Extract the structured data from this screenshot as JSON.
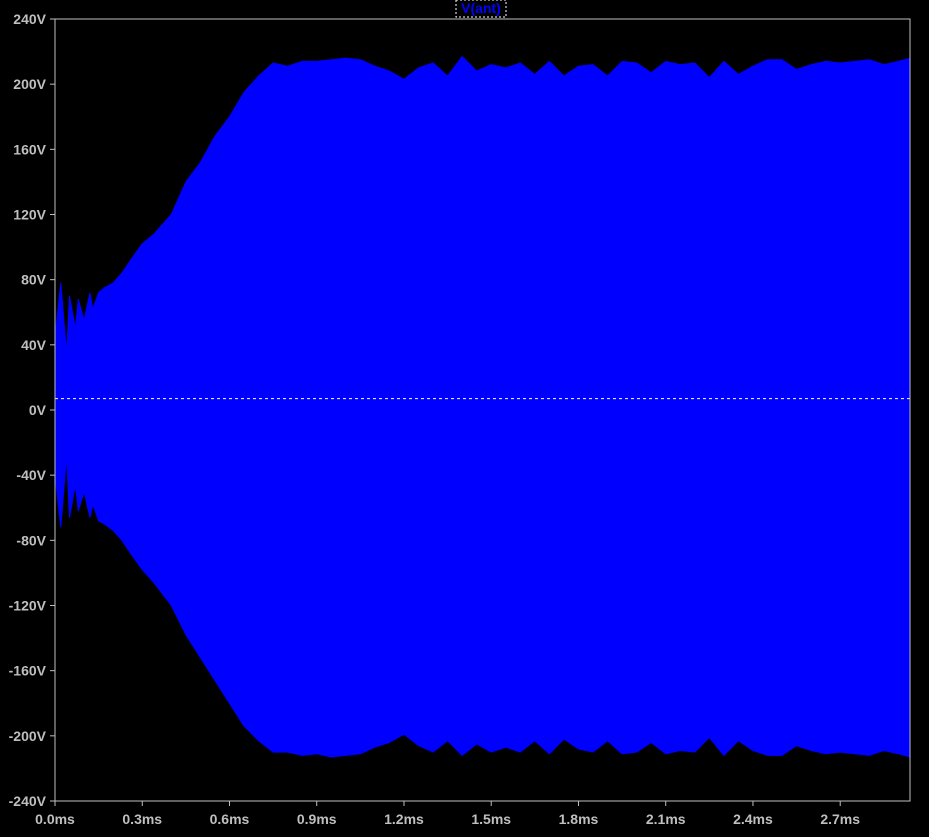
{
  "chart_data": {
    "type": "area",
    "title": "",
    "xlabel": "",
    "ylabel": "",
    "legend": {
      "label": "V(ant)",
      "placement": "top-center"
    },
    "xlim": [
      0.0,
      2.94
    ],
    "ylim": [
      -240,
      240
    ],
    "x_unit": "ms",
    "y_unit": "V",
    "x_ticks": [
      {
        "value": 0.0,
        "label": "0.0ms"
      },
      {
        "value": 0.3,
        "label": "0.3ms"
      },
      {
        "value": 0.6,
        "label": "0.6ms"
      },
      {
        "value": 0.9,
        "label": "0.9ms"
      },
      {
        "value": 1.2,
        "label": "1.2ms"
      },
      {
        "value": 1.5,
        "label": "1.5ms"
      },
      {
        "value": 1.8,
        "label": "1.8ms"
      },
      {
        "value": 2.1,
        "label": "2.1ms"
      },
      {
        "value": 2.4,
        "label": "2.4ms"
      },
      {
        "value": 2.7,
        "label": "2.7ms"
      }
    ],
    "y_ticks": [
      {
        "value": 240,
        "label": "240V"
      },
      {
        "value": 200,
        "label": "200V"
      },
      {
        "value": 160,
        "label": "160V"
      },
      {
        "value": 120,
        "label": "120V"
      },
      {
        "value": 80,
        "label": "80V"
      },
      {
        "value": 40,
        "label": "40V"
      },
      {
        "value": 0,
        "label": "0V"
      },
      {
        "value": -40,
        "label": "-40V"
      },
      {
        "value": -80,
        "label": "-80V"
      },
      {
        "value": -120,
        "label": "-120V"
      },
      {
        "value": -160,
        "label": "-160V"
      },
      {
        "value": -200,
        "label": "-200V"
      },
      {
        "value": -240,
        "label": "-240V"
      }
    ],
    "zero_line_value": 7,
    "series": [
      {
        "name": "V(ant)",
        "color": "#0000ff",
        "upper_envelope": {
          "x": [
            0.0,
            0.02,
            0.04,
            0.05,
            0.07,
            0.08,
            0.1,
            0.12,
            0.13,
            0.15,
            0.17,
            0.2,
            0.23,
            0.26,
            0.3,
            0.34,
            0.4,
            0.45,
            0.5,
            0.55,
            0.6,
            0.65,
            0.7,
            0.75,
            0.8,
            0.85,
            0.9,
            0.95,
            1.0,
            1.05,
            1.1,
            1.15,
            1.2,
            1.25,
            1.3,
            1.35,
            1.4,
            1.45,
            1.5,
            1.55,
            1.6,
            1.65,
            1.7,
            1.75,
            1.8,
            1.85,
            1.9,
            1.95,
            2.0,
            2.05,
            2.1,
            2.15,
            2.2,
            2.25,
            2.3,
            2.35,
            2.4,
            2.45,
            2.5,
            2.55,
            2.6,
            2.65,
            2.7,
            2.75,
            2.8,
            2.85,
            2.9,
            2.94
          ],
          "y": [
            45,
            78,
            35,
            70,
            50,
            68,
            55,
            72,
            62,
            72,
            75,
            78,
            84,
            92,
            102,
            108,
            120,
            140,
            152,
            168,
            180,
            195,
            205,
            213,
            211,
            214,
            214,
            215,
            216,
            215,
            211,
            208,
            203,
            210,
            213,
            205,
            217,
            208,
            212,
            210,
            213,
            206,
            214,
            205,
            211,
            212,
            205,
            214,
            213,
            207,
            214,
            212,
            213,
            204,
            214,
            206,
            211,
            215,
            215,
            209,
            212,
            214,
            213,
            214,
            215,
            212,
            214,
            216
          ]
        },
        "lower_envelope": {
          "x": [
            0.0,
            0.02,
            0.04,
            0.05,
            0.07,
            0.08,
            0.1,
            0.12,
            0.13,
            0.15,
            0.17,
            0.2,
            0.23,
            0.26,
            0.3,
            0.34,
            0.4,
            0.45,
            0.5,
            0.55,
            0.6,
            0.65,
            0.7,
            0.75,
            0.8,
            0.85,
            0.9,
            0.95,
            1.0,
            1.05,
            1.1,
            1.15,
            1.2,
            1.25,
            1.3,
            1.35,
            1.4,
            1.45,
            1.5,
            1.55,
            1.6,
            1.65,
            1.7,
            1.75,
            1.8,
            1.85,
            1.9,
            1.95,
            2.0,
            2.05,
            2.1,
            2.15,
            2.2,
            2.25,
            2.3,
            2.35,
            2.4,
            2.45,
            2.5,
            2.55,
            2.6,
            2.65,
            2.7,
            2.75,
            2.8,
            2.85,
            2.9,
            2.94
          ],
          "y": [
            -40,
            -72,
            -28,
            -66,
            -46,
            -62,
            -50,
            -66,
            -58,
            -68,
            -70,
            -74,
            -80,
            -88,
            -98,
            -106,
            -120,
            -138,
            -152,
            -166,
            -180,
            -194,
            -203,
            -210,
            -210,
            -212,
            -211,
            -213,
            -212,
            -211,
            -207,
            -204,
            -199,
            -206,
            -210,
            -203,
            -212,
            -205,
            -210,
            -207,
            -210,
            -203,
            -211,
            -202,
            -208,
            -210,
            -203,
            -211,
            -210,
            -204,
            -211,
            -209,
            -210,
            -201,
            -212,
            -203,
            -209,
            -212,
            -212,
            -206,
            -209,
            -211,
            -210,
            -211,
            -212,
            -209,
            -211,
            -213
          ]
        }
      }
    ]
  }
}
